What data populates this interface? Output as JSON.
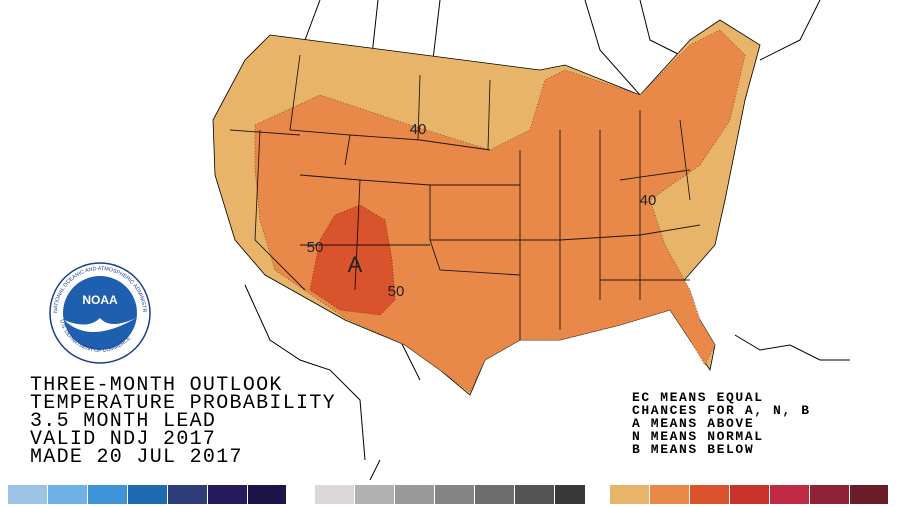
{
  "title_block": {
    "lines": [
      "THREE-MONTH OUTLOOK",
      "TEMPERATURE PROBABILITY",
      "3.5 MONTH LEAD",
      "VALID NDJ 2017",
      "MADE 20 JUL 2017"
    ]
  },
  "legend": {
    "lines": [
      "EC MEANS EQUAL",
      "CHANCES FOR A, N, B",
      "A MEANS ABOVE",
      "N MEANS NORMAL",
      "B MEANS BELOW"
    ]
  },
  "map": {
    "contour_labels": [
      "40",
      "50",
      "50",
      "40"
    ],
    "center_label": "A"
  },
  "logo": {
    "name": "NOAA",
    "ring_top": "NATIONAL OCEANIC AND ATMOSPHERIC ADMINISTRATION",
    "ring_bottom": "U.S. DEPARTMENT OF COMMERCE"
  }
}
